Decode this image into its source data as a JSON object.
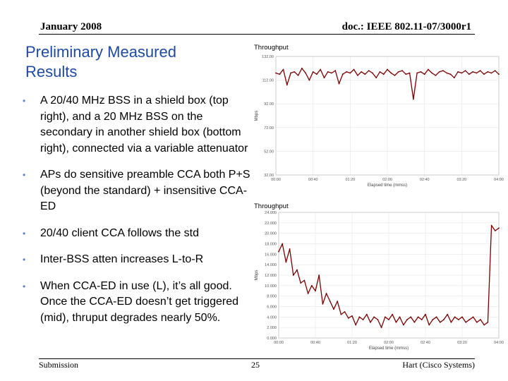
{
  "header": {
    "date": "January 2008",
    "doc_id": "doc.: IEEE 802.11-07/3000r1"
  },
  "title": {
    "line1": "Preliminary Measured",
    "line2": "Results"
  },
  "bullets": [
    "A 20/40 MHz BSS in a shield box (top right), and a 20 MHz BSS on the secondary in another shield box (bottom right), connected via a variable attenuator",
    "APs do sensitive preamble CCA both P+S (beyond the standard) + insensitive CCA-ED",
    "20/40 client CCA follows the std",
    "Inter-BSS atten increases L-to-R",
    "When CCA-ED in use (L), it’s all good. Once the CCA-ED doesn’t get triggered (mid), thruput degrades nearly 50%."
  ],
  "footer": {
    "left": "Submission",
    "page": "25",
    "right": "Hart (Cisco Systems)"
  },
  "colors": {
    "title": "#1f4aa3",
    "bullet": "#5a7fc4",
    "trace": "#7a0000"
  },
  "chart_data": [
    {
      "type": "line",
      "title": "Throughput",
      "xlabel": "Elapsed time (mmss)",
      "ylabel": "Mbps",
      "ylim": [
        32,
        132
      ],
      "yticks": [
        32,
        52,
        72,
        92,
        112,
        132
      ],
      "ytick_labels": [
        "32.00",
        "52.00",
        "72.00",
        "92.00",
        "112.00",
        "132.00"
      ],
      "xlim": [
        0,
        240
      ],
      "xticks": [
        0,
        40,
        80,
        120,
        160,
        200,
        240
      ],
      "xtick_labels": [
        "00:00",
        "00:40",
        "01:20",
        "02:00",
        "02:40",
        "03:20",
        "04:00"
      ],
      "series": [
        {
          "name": "Throughput",
          "x": [
            0,
            4,
            8,
            12,
            16,
            20,
            24,
            28,
            32,
            36,
            40,
            44,
            48,
            52,
            56,
            60,
            64,
            68,
            72,
            76,
            80,
            84,
            88,
            92,
            96,
            100,
            104,
            108,
            112,
            116,
            120,
            124,
            128,
            132,
            136,
            140,
            144,
            148,
            152,
            156,
            160,
            164,
            168,
            172,
            176,
            180,
            184,
            188,
            192,
            196,
            200,
            204,
            208,
            212,
            216,
            220,
            224,
            228,
            232,
            236,
            240
          ],
          "y": [
            118,
            117,
            121,
            108,
            118,
            119,
            116,
            122,
            118,
            112,
            119,
            117,
            121,
            114,
            119,
            118,
            120,
            109,
            117,
            119,
            118,
            121,
            116,
            119,
            117,
            120,
            118,
            114,
            119,
            117,
            121,
            118,
            116,
            119,
            120,
            117,
            118,
            96,
            118,
            119,
            117,
            121,
            118,
            116,
            119,
            120,
            118,
            117,
            114,
            119,
            118,
            120,
            117,
            119,
            118,
            120,
            117,
            119,
            118,
            120,
            117
          ]
        }
      ]
    },
    {
      "type": "line",
      "title": "Throughput",
      "xlabel": "Elapsed time (mmss)",
      "ylabel": "Mbps",
      "ylim": [
        0,
        24
      ],
      "yticks": [
        0,
        2,
        4,
        6,
        8,
        10,
        12,
        14,
        16,
        18,
        20,
        22,
        24
      ],
      "ytick_labels": [
        "0.000",
        "2.000",
        "4.000",
        "6.000",
        "8.000",
        "10.000",
        "12.000",
        "14.000",
        "16.000",
        "18.000",
        "20.000",
        "22.000",
        "24.000"
      ],
      "xlim": [
        0,
        240
      ],
      "xticks": [
        0,
        40,
        80,
        120,
        160,
        200,
        240
      ],
      "xtick_labels": [
        "00:00",
        "00:40",
        "01:20",
        "02:00",
        "02:40",
        "03:20",
        "04:00"
      ],
      "series": [
        {
          "name": "Throughput",
          "x": [
            0,
            4,
            8,
            12,
            16,
            20,
            24,
            28,
            32,
            36,
            40,
            44,
            48,
            52,
            56,
            60,
            64,
            68,
            72,
            76,
            80,
            84,
            88,
            92,
            96,
            100,
            104,
            108,
            112,
            116,
            120,
            124,
            128,
            132,
            136,
            140,
            144,
            148,
            152,
            156,
            160,
            164,
            168,
            172,
            176,
            180,
            184,
            188,
            192,
            196,
            200,
            204,
            208,
            212,
            216,
            220,
            224,
            228,
            232,
            236,
            240
          ],
          "y": [
            16.5,
            18,
            14.5,
            17,
            12,
            13,
            10.5,
            11,
            8.5,
            10,
            9,
            12,
            6.5,
            8.5,
            7,
            5.5,
            7,
            4.5,
            5,
            3.8,
            4.2,
            2.5,
            4,
            3.5,
            4.5,
            3,
            4,
            3.5,
            2,
            4,
            3.5,
            4.5,
            3,
            4,
            2.5,
            3.5,
            4,
            3,
            4,
            3.5,
            4.5,
            2.5,
            3.5,
            4,
            3,
            3.5,
            4.5,
            3,
            4,
            3.5,
            4,
            3,
            3.5,
            4,
            3,
            3.5,
            2.5,
            3,
            21.5,
            20.5,
            21
          ]
        }
      ]
    }
  ]
}
